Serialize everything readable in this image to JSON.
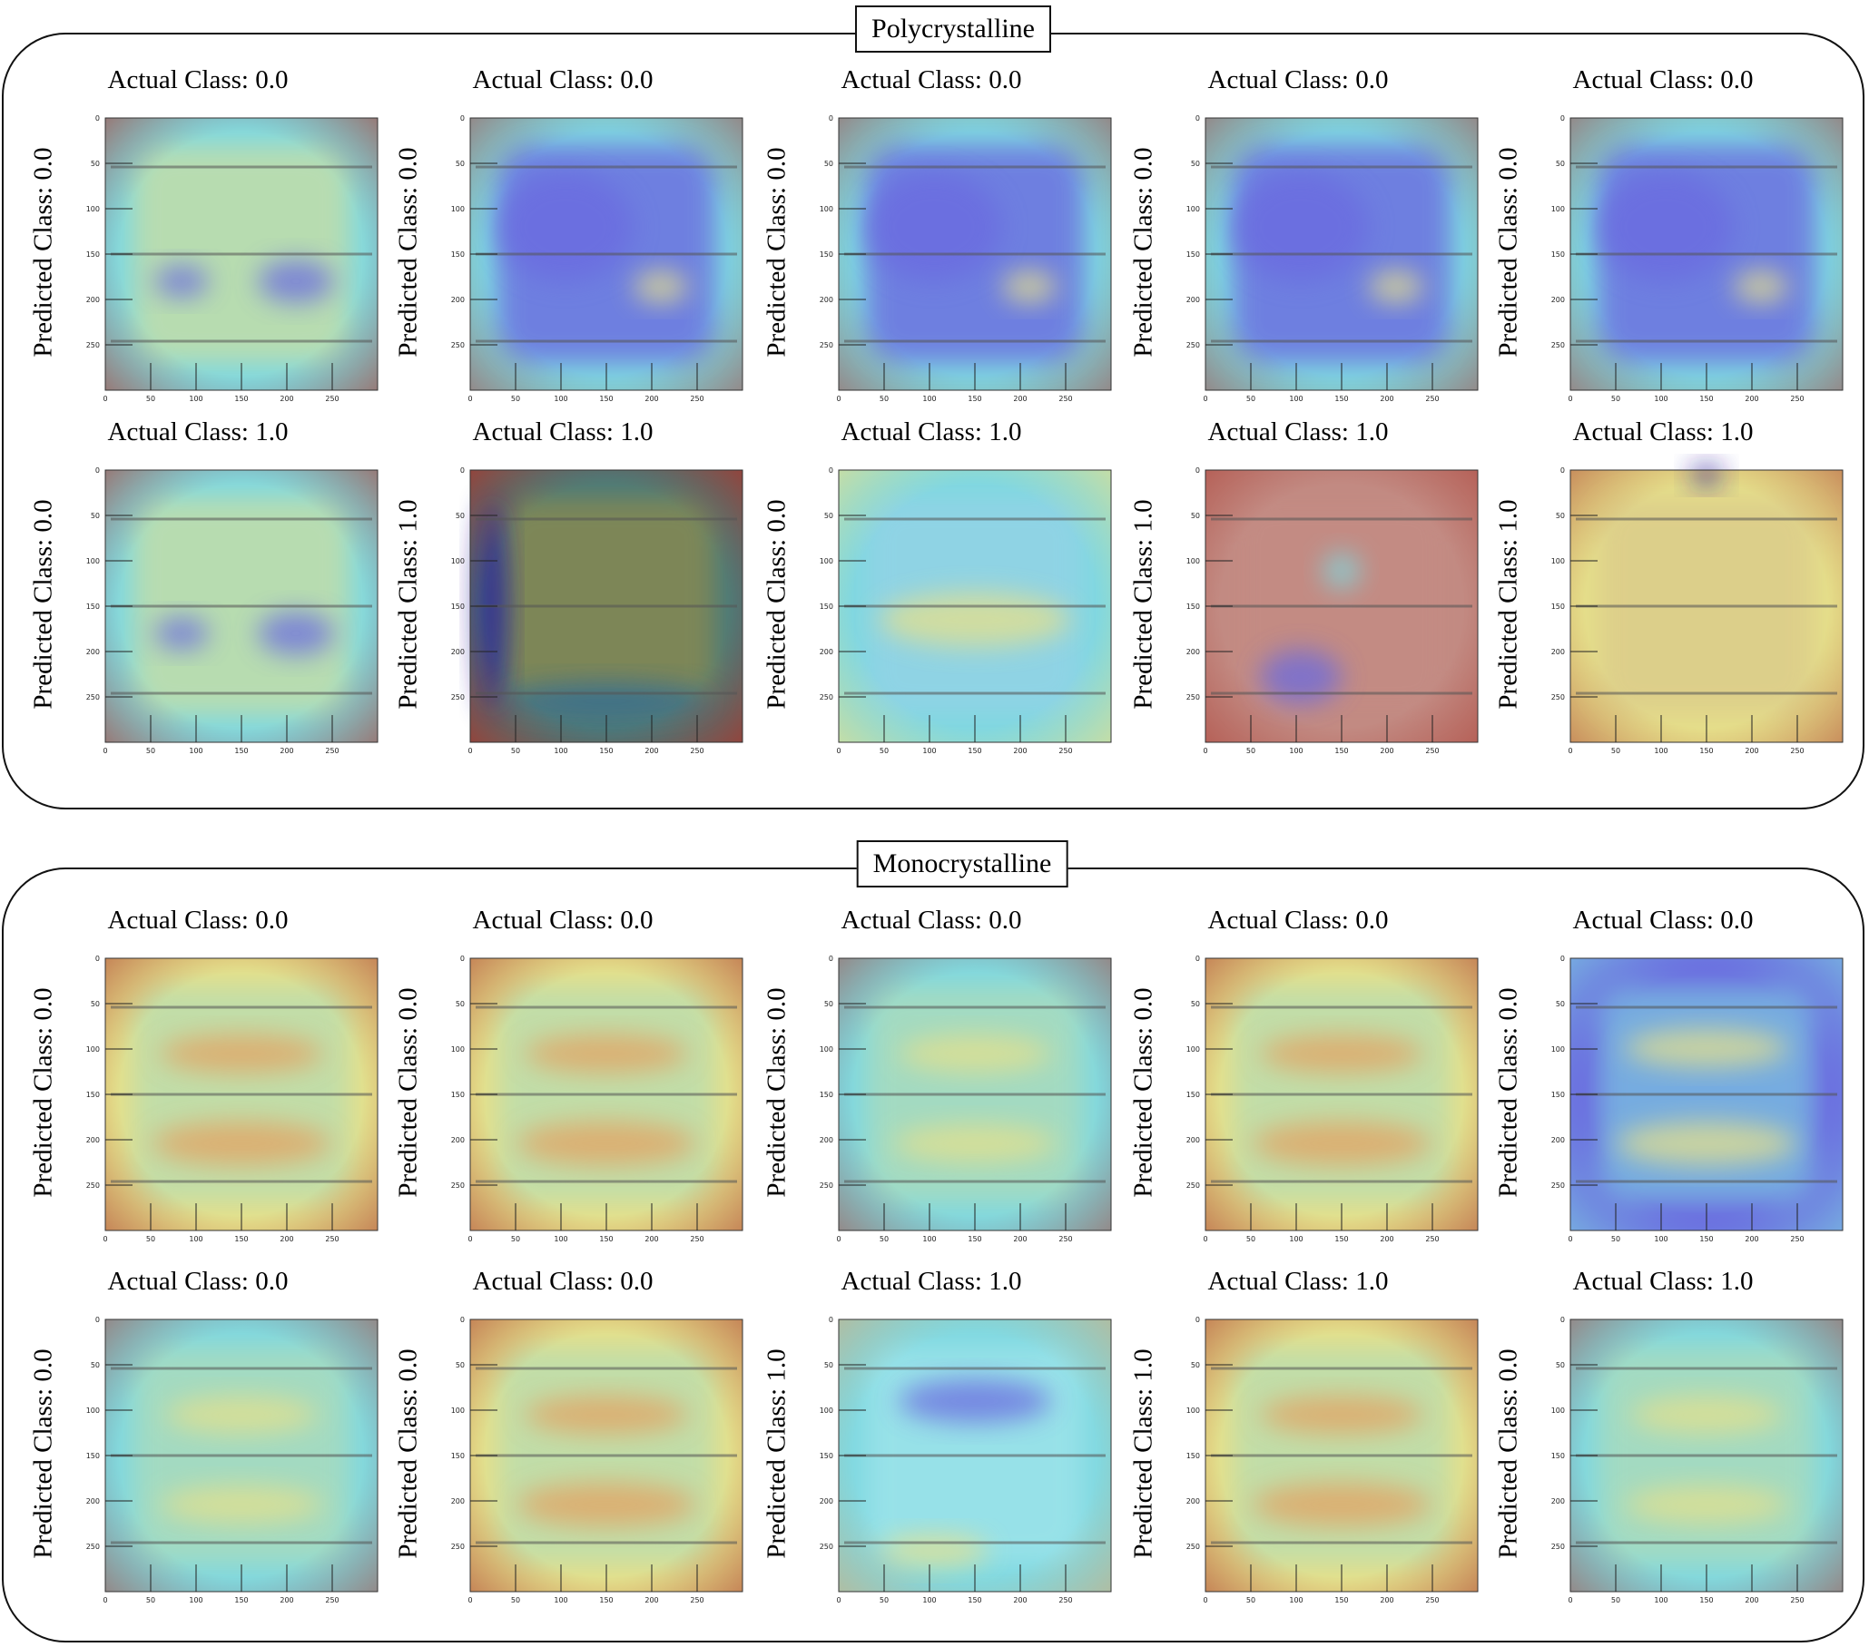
{
  "groups": [
    {
      "title": "Polycrystalline",
      "panels": [
        {
          "actual": "Actual Class: 0.0",
          "predicted": "Predicted Class: 0.0",
          "style": "poly-cool"
        },
        {
          "actual": "Actual Class: 0.0",
          "predicted": "Predicted Class: 0.0",
          "style": "poly-blue"
        },
        {
          "actual": "Actual Class: 0.0",
          "predicted": "Predicted Class: 0.0",
          "style": "poly-blue"
        },
        {
          "actual": "Actual Class: 0.0",
          "predicted": "Predicted Class: 0.0",
          "style": "poly-blue"
        },
        {
          "actual": "Actual Class: 0.0",
          "predicted": "Predicted Class: 0.0",
          "style": "poly-blue"
        },
        {
          "actual": "Actual Class: 1.0",
          "predicted": "Predicted Class: 0.0",
          "style": "poly-cool"
        },
        {
          "actual": "Actual Class: 1.0",
          "predicted": "Predicted Class: 1.0",
          "style": "poly-dark"
        },
        {
          "actual": "Actual Class: 1.0",
          "predicted": "Predicted Class: 0.0",
          "style": "poly-cyan"
        },
        {
          "actual": "Actual Class: 1.0",
          "predicted": "Predicted Class: 1.0",
          "style": "poly-red"
        },
        {
          "actual": "Actual Class: 1.0",
          "predicted": "Predicted Class: 1.0",
          "style": "poly-warm"
        }
      ]
    },
    {
      "title": "Monocrystalline",
      "panels": [
        {
          "actual": "Actual Class: 0.0",
          "predicted": "Predicted Class: 0.0",
          "style": "mono-warm"
        },
        {
          "actual": "Actual Class: 0.0",
          "predicted": "Predicted Class: 0.0",
          "style": "mono-warm"
        },
        {
          "actual": "Actual Class: 0.0",
          "predicted": "Predicted Class: 0.0",
          "style": "mono-cool"
        },
        {
          "actual": "Actual Class: 0.0",
          "predicted": "Predicted Class: 0.0",
          "style": "mono-warm"
        },
        {
          "actual": "Actual Class: 0.0",
          "predicted": "Predicted Class: 0.0",
          "style": "mono-blue"
        },
        {
          "actual": "Actual Class: 0.0",
          "predicted": "Predicted Class: 0.0",
          "style": "mono-cool"
        },
        {
          "actual": "Actual Class: 0.0",
          "predicted": "Predicted Class: 0.0",
          "style": "mono-warm"
        },
        {
          "actual": "Actual Class: 1.0",
          "predicted": "Predicted Class: 1.0",
          "style": "mono-cyan"
        },
        {
          "actual": "Actual Class: 1.0",
          "predicted": "Predicted Class: 1.0",
          "style": "mono-warm"
        },
        {
          "actual": "Actual Class: 1.0",
          "predicted": "Predicted Class: 0.0",
          "style": "mono-cool"
        }
      ]
    }
  ],
  "axis_ticks": [
    "0",
    "50",
    "100",
    "150",
    "200",
    "250"
  ],
  "colors": {
    "jet_dark_blue": "#2a1e9a",
    "jet_blue": "#6a6ae0",
    "jet_cyan": "#7fd8e0",
    "jet_yellow": "#e6e08a",
    "jet_orange": "#e4a060",
    "jet_red": "#a8342a",
    "grid_line": "#555555"
  }
}
